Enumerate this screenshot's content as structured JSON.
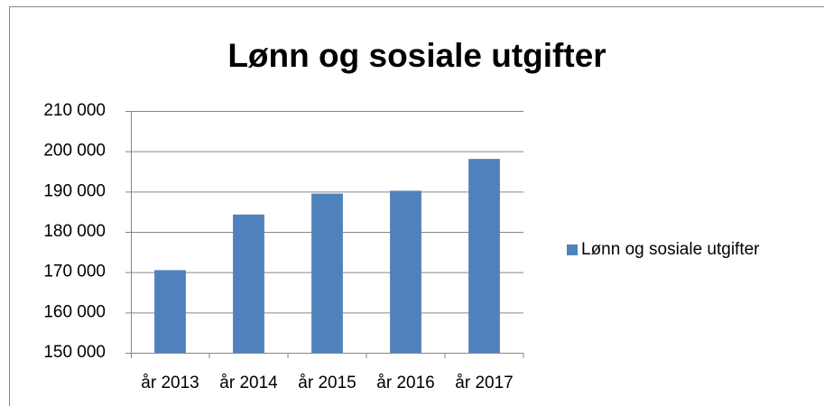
{
  "chart_data": {
    "type": "bar",
    "title": "Lønn og sosiale utgifter",
    "categories": [
      "år 2013",
      "år 2014",
      "år 2015",
      "år 2016",
      "år 2017"
    ],
    "series": [
      {
        "name": "Lønn og sosiale utgifter",
        "color": "#4f81bd",
        "values": [
          170500,
          184300,
          189500,
          190200,
          198100
        ]
      }
    ],
    "ylim": [
      150000,
      210000
    ],
    "yticks": [
      {
        "value": 150000,
        "label": "150 000"
      },
      {
        "value": 160000,
        "label": "160 000"
      },
      {
        "value": 170000,
        "label": "170 000"
      },
      {
        "value": 180000,
        "label": "180 000"
      },
      {
        "value": 190000,
        "label": "190 000"
      },
      {
        "value": 200000,
        "label": "200 000"
      },
      {
        "value": 210000,
        "label": "210 000"
      }
    ],
    "grid": true,
    "legend": "right"
  }
}
